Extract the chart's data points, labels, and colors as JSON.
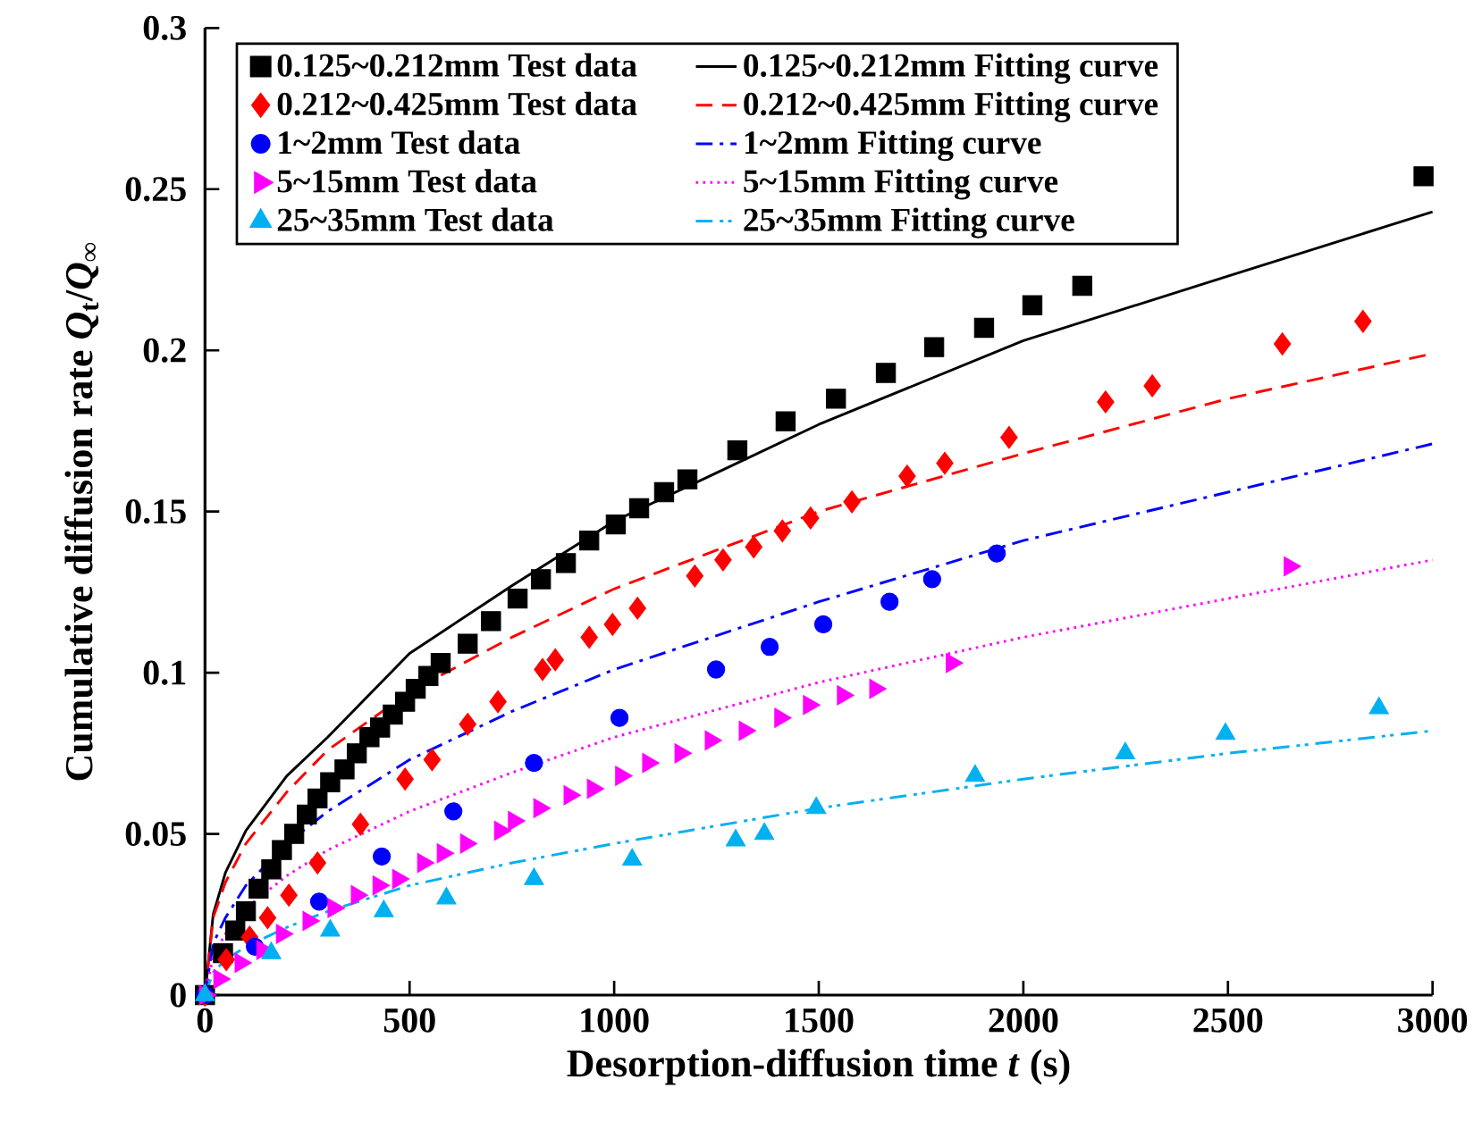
{
  "chart_data": {
    "type": "scatter",
    "xlabel": "Desorption-diffusion time *t* (s)",
    "ylabel": "Cumulative diffusion rate *Q*$_{t}$/*Q*$_{∞}$",
    "xlim": [
      0,
      3000
    ],
    "ylim": [
      0,
      0.3
    ],
    "xticks": [
      0,
      500,
      1000,
      1500,
      2000,
      2500,
      3000
    ],
    "yticks": [
      0,
      0.05,
      0.1,
      0.15,
      0.2,
      0.25,
      0.3
    ],
    "legend": "top left",
    "series": [
      {
        "name": "0.125~0.212mm Test data",
        "marker": "square",
        "color": "#000000",
        "x": [
          0,
          44,
          74,
          100,
          131,
          162,
          188,
          218,
          249,
          275,
          306,
          341,
          371,
          402,
          428,
          459,
          489,
          515,
          546,
          576,
          642,
          699,
          764,
          821,
          882,
          939,
          1004,
          1061,
          1122,
          1179,
          1301,
          1419,
          1542,
          1664,
          1782,
          1904,
          2022,
          2144,
          2978
        ],
        "values": [
          0,
          0.013,
          0.02,
          0.026,
          0.033,
          0.039,
          0.045,
          0.05,
          0.056,
          0.061,
          0.066,
          0.07,
          0.075,
          0.08,
          0.083,
          0.087,
          0.091,
          0.095,
          0.099,
          0.103,
          0.109,
          0.116,
          0.123,
          0.129,
          0.134,
          0.141,
          0.146,
          0.151,
          0.156,
          0.16,
          0.169,
          0.178,
          0.185,
          0.193,
          0.201,
          0.207,
          0.214,
          0.22,
          0.254
        ]
      },
      {
        "name": "0.125~0.212mm Fitting curve",
        "type": "line",
        "line_style": "solid",
        "color": "#000000",
        "x": [
          0,
          20,
          50,
          100,
          200,
          300,
          500,
          750,
          1000,
          1250,
          1500,
          2000,
          2500,
          3000
        ],
        "values": [
          0,
          0.025,
          0.038,
          0.051,
          0.068,
          0.08,
          0.106,
          0.127,
          0.147,
          0.162,
          0.177,
          0.203,
          0.223,
          0.243
        ]
      },
      {
        "name": "0.212~0.425mm Test data",
        "marker": "diamond",
        "color": "#ff0000",
        "x": [
          0,
          52,
          109,
          153,
          205,
          275,
          380,
          489,
          555,
          642,
          716,
          825,
          856,
          939,
          996,
          1057,
          1197,
          1266,
          1341,
          1411,
          1480,
          1581,
          1716,
          1808,
          1965,
          2201,
          2315,
          2633,
          2830
        ],
        "values": [
          0,
          0.011,
          0.018,
          0.024,
          0.031,
          0.041,
          0.053,
          0.067,
          0.073,
          0.084,
          0.091,
          0.101,
          0.104,
          0.111,
          0.115,
          0.12,
          0.13,
          0.135,
          0.139,
          0.144,
          0.148,
          0.153,
          0.161,
          0.165,
          0.173,
          0.184,
          0.189,
          0.202,
          0.209
        ]
      },
      {
        "name": "0.212~0.425mm Fitting curve",
        "type": "line",
        "line_style": "dashed",
        "color": "#ff0000",
        "x": [
          0,
          20,
          50,
          100,
          200,
          300,
          500,
          750,
          1000,
          1500,
          2000,
          2500,
          3000
        ],
        "values": [
          0,
          0.024,
          0.035,
          0.047,
          0.063,
          0.076,
          0.094,
          0.111,
          0.126,
          0.15,
          0.168,
          0.185,
          0.199
        ]
      },
      {
        "name": "1~2mm Test data",
        "marker": "circle",
        "color": "#0000ff",
        "x": [
          0,
          122,
          279,
          432,
          607,
          804,
          1013,
          1249,
          1380,
          1511,
          1673,
          1777,
          1935
        ],
        "values": [
          0,
          0.015,
          0.029,
          0.043,
          0.057,
          0.072,
          0.086,
          0.101,
          0.108,
          0.115,
          0.122,
          0.129,
          0.137
        ]
      },
      {
        "name": "1~2mm Fitting curve",
        "type": "line",
        "line_style": "dashdot",
        "color": "#0000ff",
        "x": [
          0,
          20,
          50,
          100,
          200,
          300,
          500,
          750,
          1000,
          1500,
          2000,
          2500,
          3000
        ],
        "values": [
          0,
          0.016,
          0.024,
          0.034,
          0.047,
          0.057,
          0.073,
          0.088,
          0.101,
          0.122,
          0.141,
          0.156,
          0.171
        ]
      },
      {
        "name": "5~15mm Test data",
        "marker": "triangle-right",
        "color": "#ff00ff",
        "x": [
          0,
          35,
          87,
          140,
          188,
          253,
          314,
          371,
          424,
          472,
          533,
          581,
          638,
          721,
          755,
          817,
          891,
          948,
          1017,
          1083,
          1162,
          1236,
          1319,
          1406,
          1476,
          1559,
          1638,
          1825,
          2651
        ],
        "values": [
          0,
          0.005,
          0.01,
          0.014,
          0.019,
          0.023,
          0.027,
          0.031,
          0.034,
          0.036,
          0.041,
          0.044,
          0.047,
          0.051,
          0.054,
          0.058,
          0.062,
          0.064,
          0.068,
          0.072,
          0.075,
          0.079,
          0.082,
          0.086,
          0.09,
          0.093,
          0.095,
          0.103,
          0.133
        ]
      },
      {
        "name": "5~15mm Fitting curve",
        "type": "line",
        "line_style": "dotted",
        "color": "#ff00ff",
        "x": [
          0,
          20,
          50,
          100,
          200,
          300,
          500,
          750,
          1000,
          1500,
          2000,
          2500,
          3000
        ],
        "values": [
          0,
          0.012,
          0.019,
          0.027,
          0.037,
          0.045,
          0.057,
          0.069,
          0.08,
          0.097,
          0.111,
          0.123,
          0.135
        ]
      },
      {
        "name": "25~35mm Test data",
        "marker": "triangle",
        "color": "#00b0f0",
        "x": [
          0,
          162,
          306,
          437,
          590,
          804,
          1044,
          1297,
          1367,
          1494,
          1882,
          2249,
          2494,
          2869
        ],
        "values": [
          0,
          0.013,
          0.02,
          0.026,
          0.03,
          0.036,
          0.042,
          0.048,
          0.05,
          0.058,
          0.068,
          0.075,
          0.081,
          0.089
        ]
      },
      {
        "name": "25~35mm Fitting curve",
        "type": "line",
        "line_style": "dashdotdot",
        "color": "#00b0f0",
        "x": [
          0,
          20,
          50,
          100,
          200,
          300,
          500,
          750,
          1000,
          1500,
          2000,
          2500,
          3000
        ],
        "values": [
          0,
          0.007,
          0.011,
          0.015,
          0.021,
          0.026,
          0.034,
          0.041,
          0.047,
          0.058,
          0.067,
          0.075,
          0.082
        ]
      }
    ]
  }
}
